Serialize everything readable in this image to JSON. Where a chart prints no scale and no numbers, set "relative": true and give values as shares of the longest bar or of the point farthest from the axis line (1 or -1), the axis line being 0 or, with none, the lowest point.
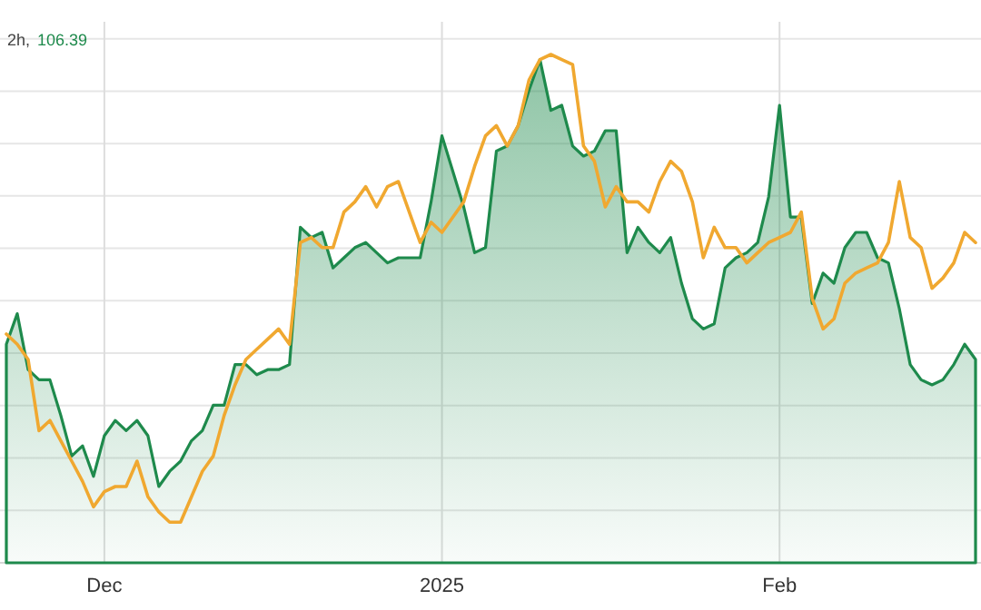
{
  "chart_data": {
    "type": "area",
    "relative": true,
    "grid": true,
    "annotations": [
      "2h,",
      "106.39"
    ],
    "x": [
      "2024-11-22",
      "2024-11-23",
      "2024-11-24",
      "2024-11-25",
      "2024-11-26",
      "2024-11-27",
      "2024-11-28",
      "2024-11-29",
      "2024-11-30",
      "2024-12-01",
      "2024-12-02",
      "2024-12-03",
      "2024-12-04",
      "2024-12-05",
      "2024-12-06",
      "2024-12-07",
      "2024-12-08",
      "2024-12-09",
      "2024-12-10",
      "2024-12-11",
      "2024-12-12",
      "2024-12-13",
      "2024-12-14",
      "2024-12-15",
      "2024-12-16",
      "2024-12-17",
      "2024-12-18",
      "2024-12-19",
      "2024-12-20",
      "2024-12-21",
      "2024-12-22",
      "2024-12-23",
      "2024-12-24",
      "2024-12-25",
      "2024-12-26",
      "2024-12-27",
      "2024-12-28",
      "2024-12-29",
      "2024-12-30",
      "2024-12-31",
      "2025-01-01",
      "2025-01-02",
      "2025-01-03",
      "2025-01-04",
      "2025-01-05",
      "2025-01-06",
      "2025-01-07",
      "2025-01-08",
      "2025-01-09",
      "2025-01-10",
      "2025-01-11",
      "2025-01-12",
      "2025-01-13",
      "2025-01-14",
      "2025-01-15",
      "2025-01-16",
      "2025-01-17",
      "2025-01-18",
      "2025-01-19",
      "2025-01-20",
      "2025-01-21",
      "2025-01-22",
      "2025-01-23",
      "2025-01-24",
      "2025-01-25",
      "2025-01-26",
      "2025-01-27",
      "2025-01-28",
      "2025-01-29",
      "2025-01-30",
      "2025-01-31",
      "2025-02-01",
      "2025-02-02",
      "2025-02-03",
      "2025-02-04",
      "2025-02-05",
      "2025-02-06",
      "2025-02-07",
      "2025-02-08",
      "2025-02-09",
      "2025-02-10",
      "2025-02-11",
      "2025-02-12",
      "2025-02-13",
      "2025-02-14",
      "2025-02-15",
      "2025-02-16",
      "2025-02-17",
      "2025-02-18",
      "2025-02-19"
    ],
    "xlim": [
      "2024-11-21T10:00",
      "2025-02-19T12:00"
    ],
    "xticks": [
      {
        "value": "2024-12-01",
        "label": "Dec"
      },
      {
        "value": "2025-01-01",
        "label": "2025"
      },
      {
        "value": "2025-02-01",
        "label": "Feb"
      }
    ],
    "series": [
      {
        "color": "#1e8a4c",
        "values": [
          0.43,
          0.49,
          0.38,
          0.36,
          0.36,
          0.29,
          0.21,
          0.23,
          0.17,
          0.25,
          0.28,
          0.26,
          0.28,
          0.25,
          0.15,
          0.18,
          0.2,
          0.24,
          0.26,
          0.31,
          0.31,
          0.39,
          0.39,
          0.37,
          0.38,
          0.38,
          0.39,
          0.66,
          0.64,
          0.65,
          0.58,
          0.6,
          0.62,
          0.63,
          0.61,
          0.59,
          0.6,
          0.6,
          0.6,
          0.71,
          0.84,
          0.77,
          0.7,
          0.61,
          0.62,
          0.81,
          0.82,
          0.86,
          0.93,
          0.99,
          0.89,
          0.9,
          0.82,
          0.8,
          0.81,
          0.85,
          0.85,
          0.61,
          0.66,
          0.63,
          0.61,
          0.64,
          0.55,
          0.48,
          0.46,
          0.47,
          0.58,
          0.6,
          0.61,
          0.63,
          0.72,
          0.9,
          0.68,
          0.68,
          0.51,
          0.57,
          0.55,
          0.62,
          0.65,
          0.65,
          0.6,
          0.59,
          0.5,
          0.39,
          0.36,
          0.35,
          0.36,
          0.39,
          0.43,
          0.4
        ]
      },
      {
        "type": "line",
        "color": "#f0a830",
        "values": [
          0.45,
          0.43,
          0.4,
          0.26,
          0.28,
          0.24,
          0.2,
          0.16,
          0.11,
          0.14,
          0.15,
          0.15,
          0.2,
          0.13,
          0.1,
          0.08,
          0.08,
          0.13,
          0.18,
          0.21,
          0.29,
          0.35,
          0.4,
          0.42,
          0.44,
          0.46,
          0.43,
          0.63,
          0.64,
          0.62,
          0.62,
          0.69,
          0.71,
          0.74,
          0.7,
          0.74,
          0.75,
          0.69,
          0.63,
          0.67,
          0.65,
          0.68,
          0.71,
          0.78,
          0.84,
          0.86,
          0.82,
          0.86,
          0.95,
          0.99,
          1,
          0.99,
          0.98,
          0.82,
          0.79,
          0.7,
          0.74,
          0.71,
          0.71,
          0.69,
          0.75,
          0.79,
          0.77,
          0.71,
          0.6,
          0.66,
          0.62,
          0.62,
          0.59,
          0.61,
          0.63,
          0.64,
          0.65,
          0.69,
          0.52,
          0.46,
          0.48,
          0.55,
          0.57,
          0.58,
          0.59,
          0.63,
          0.75,
          0.64,
          0.62,
          0.54,
          0.56,
          0.59,
          0.65,
          0.63
        ]
      }
    ]
  }
}
